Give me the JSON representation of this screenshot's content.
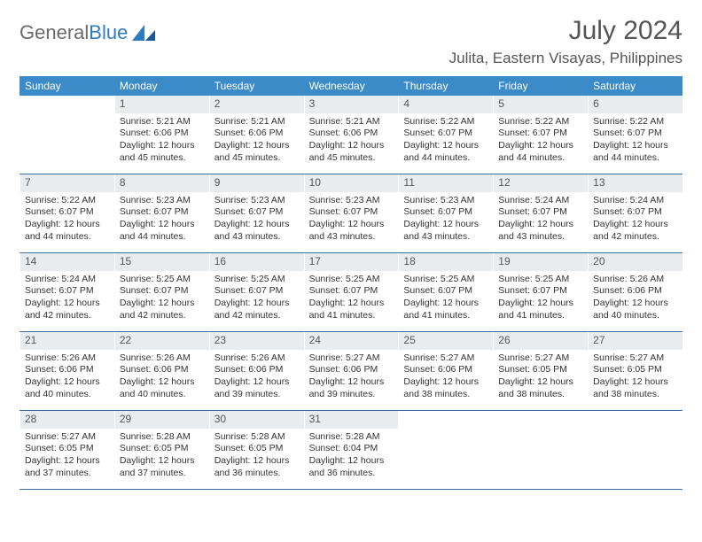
{
  "logo": {
    "text1": "General",
    "text2": "Blue"
  },
  "title": "July 2024",
  "location": "Julita, Eastern Visayas, Philippines",
  "colors": {
    "header_bg": "#3b8bc9",
    "header_text": "#ffffff",
    "daynum_bg": "#e9ecef",
    "week_border": "#3b6fa0",
    "logo_gray": "#6a6a6a",
    "logo_blue": "#2f7bbf",
    "title_color": "#555555",
    "body_text": "#333333"
  },
  "day_labels": [
    "Sunday",
    "Monday",
    "Tuesday",
    "Wednesday",
    "Thursday",
    "Friday",
    "Saturday"
  ],
  "weeks": [
    [
      null,
      {
        "n": "1",
        "sr": "Sunrise: 5:21 AM",
        "ss": "Sunset: 6:06 PM",
        "d1": "Daylight: 12 hours",
        "d2": "and 45 minutes."
      },
      {
        "n": "2",
        "sr": "Sunrise: 5:21 AM",
        "ss": "Sunset: 6:06 PM",
        "d1": "Daylight: 12 hours",
        "d2": "and 45 minutes."
      },
      {
        "n": "3",
        "sr": "Sunrise: 5:21 AM",
        "ss": "Sunset: 6:06 PM",
        "d1": "Daylight: 12 hours",
        "d2": "and 45 minutes."
      },
      {
        "n": "4",
        "sr": "Sunrise: 5:22 AM",
        "ss": "Sunset: 6:07 PM",
        "d1": "Daylight: 12 hours",
        "d2": "and 44 minutes."
      },
      {
        "n": "5",
        "sr": "Sunrise: 5:22 AM",
        "ss": "Sunset: 6:07 PM",
        "d1": "Daylight: 12 hours",
        "d2": "and 44 minutes."
      },
      {
        "n": "6",
        "sr": "Sunrise: 5:22 AM",
        "ss": "Sunset: 6:07 PM",
        "d1": "Daylight: 12 hours",
        "d2": "and 44 minutes."
      }
    ],
    [
      {
        "n": "7",
        "sr": "Sunrise: 5:22 AM",
        "ss": "Sunset: 6:07 PM",
        "d1": "Daylight: 12 hours",
        "d2": "and 44 minutes."
      },
      {
        "n": "8",
        "sr": "Sunrise: 5:23 AM",
        "ss": "Sunset: 6:07 PM",
        "d1": "Daylight: 12 hours",
        "d2": "and 44 minutes."
      },
      {
        "n": "9",
        "sr": "Sunrise: 5:23 AM",
        "ss": "Sunset: 6:07 PM",
        "d1": "Daylight: 12 hours",
        "d2": "and 43 minutes."
      },
      {
        "n": "10",
        "sr": "Sunrise: 5:23 AM",
        "ss": "Sunset: 6:07 PM",
        "d1": "Daylight: 12 hours",
        "d2": "and 43 minutes."
      },
      {
        "n": "11",
        "sr": "Sunrise: 5:23 AM",
        "ss": "Sunset: 6:07 PM",
        "d1": "Daylight: 12 hours",
        "d2": "and 43 minutes."
      },
      {
        "n": "12",
        "sr": "Sunrise: 5:24 AM",
        "ss": "Sunset: 6:07 PM",
        "d1": "Daylight: 12 hours",
        "d2": "and 43 minutes."
      },
      {
        "n": "13",
        "sr": "Sunrise: 5:24 AM",
        "ss": "Sunset: 6:07 PM",
        "d1": "Daylight: 12 hours",
        "d2": "and 42 minutes."
      }
    ],
    [
      {
        "n": "14",
        "sr": "Sunrise: 5:24 AM",
        "ss": "Sunset: 6:07 PM",
        "d1": "Daylight: 12 hours",
        "d2": "and 42 minutes."
      },
      {
        "n": "15",
        "sr": "Sunrise: 5:25 AM",
        "ss": "Sunset: 6:07 PM",
        "d1": "Daylight: 12 hours",
        "d2": "and 42 minutes."
      },
      {
        "n": "16",
        "sr": "Sunrise: 5:25 AM",
        "ss": "Sunset: 6:07 PM",
        "d1": "Daylight: 12 hours",
        "d2": "and 42 minutes."
      },
      {
        "n": "17",
        "sr": "Sunrise: 5:25 AM",
        "ss": "Sunset: 6:07 PM",
        "d1": "Daylight: 12 hours",
        "d2": "and 41 minutes."
      },
      {
        "n": "18",
        "sr": "Sunrise: 5:25 AM",
        "ss": "Sunset: 6:07 PM",
        "d1": "Daylight: 12 hours",
        "d2": "and 41 minutes."
      },
      {
        "n": "19",
        "sr": "Sunrise: 5:25 AM",
        "ss": "Sunset: 6:07 PM",
        "d1": "Daylight: 12 hours",
        "d2": "and 41 minutes."
      },
      {
        "n": "20",
        "sr": "Sunrise: 5:26 AM",
        "ss": "Sunset: 6:06 PM",
        "d1": "Daylight: 12 hours",
        "d2": "and 40 minutes."
      }
    ],
    [
      {
        "n": "21",
        "sr": "Sunrise: 5:26 AM",
        "ss": "Sunset: 6:06 PM",
        "d1": "Daylight: 12 hours",
        "d2": "and 40 minutes."
      },
      {
        "n": "22",
        "sr": "Sunrise: 5:26 AM",
        "ss": "Sunset: 6:06 PM",
        "d1": "Daylight: 12 hours",
        "d2": "and 40 minutes."
      },
      {
        "n": "23",
        "sr": "Sunrise: 5:26 AM",
        "ss": "Sunset: 6:06 PM",
        "d1": "Daylight: 12 hours",
        "d2": "and 39 minutes."
      },
      {
        "n": "24",
        "sr": "Sunrise: 5:27 AM",
        "ss": "Sunset: 6:06 PM",
        "d1": "Daylight: 12 hours",
        "d2": "and 39 minutes."
      },
      {
        "n": "25",
        "sr": "Sunrise: 5:27 AM",
        "ss": "Sunset: 6:06 PM",
        "d1": "Daylight: 12 hours",
        "d2": "and 38 minutes."
      },
      {
        "n": "26",
        "sr": "Sunrise: 5:27 AM",
        "ss": "Sunset: 6:05 PM",
        "d1": "Daylight: 12 hours",
        "d2": "and 38 minutes."
      },
      {
        "n": "27",
        "sr": "Sunrise: 5:27 AM",
        "ss": "Sunset: 6:05 PM",
        "d1": "Daylight: 12 hours",
        "d2": "and 38 minutes."
      }
    ],
    [
      {
        "n": "28",
        "sr": "Sunrise: 5:27 AM",
        "ss": "Sunset: 6:05 PM",
        "d1": "Daylight: 12 hours",
        "d2": "and 37 minutes."
      },
      {
        "n": "29",
        "sr": "Sunrise: 5:28 AM",
        "ss": "Sunset: 6:05 PM",
        "d1": "Daylight: 12 hours",
        "d2": "and 37 minutes."
      },
      {
        "n": "30",
        "sr": "Sunrise: 5:28 AM",
        "ss": "Sunset: 6:05 PM",
        "d1": "Daylight: 12 hours",
        "d2": "and 36 minutes."
      },
      {
        "n": "31",
        "sr": "Sunrise: 5:28 AM",
        "ss": "Sunset: 6:04 PM",
        "d1": "Daylight: 12 hours",
        "d2": "and 36 minutes."
      },
      null,
      null,
      null
    ]
  ]
}
